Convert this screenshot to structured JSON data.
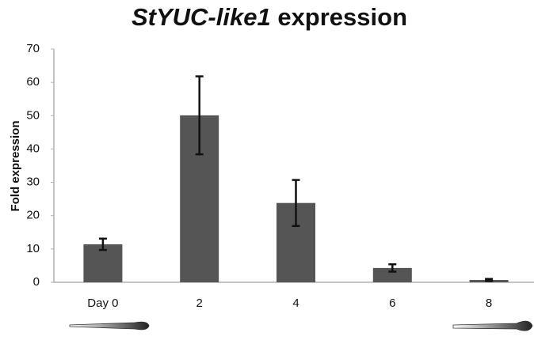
{
  "chart_data": {
    "type": "bar",
    "title": [
      "StYUC-like1",
      "expression"
    ],
    "y_label": "Fold expression",
    "categories": [
      "Day 0",
      "2",
      "4",
      "6",
      "8"
    ],
    "values": [
      11.4,
      50.1,
      23.8,
      4.3,
      0.7
    ],
    "errors": [
      1.7,
      11.7,
      6.9,
      1.1,
      0.3
    ],
    "color": "#555555",
    "ylim": [
      0,
      70
    ],
    "yticks": [
      0,
      10,
      20,
      30,
      40,
      50,
      60,
      70
    ],
    "grid": false
  }
}
